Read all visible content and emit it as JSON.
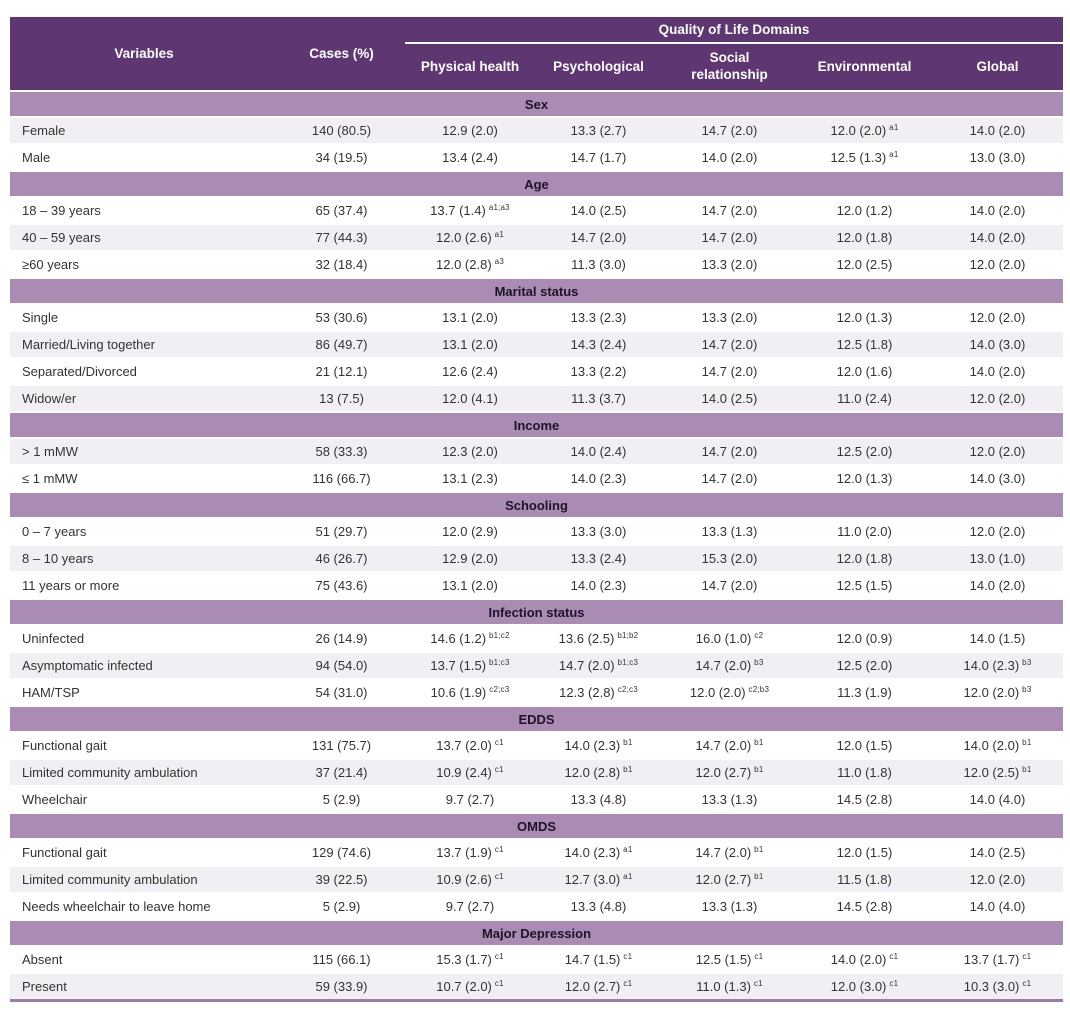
{
  "table": {
    "header": {
      "group_title": "Quality of Life Domains",
      "variables_label": "Variables",
      "cases_label": "Cases (%)",
      "domains": [
        "Physical health",
        "Psychological",
        "Social relationship",
        "Environmental",
        "Global"
      ]
    },
    "colors": {
      "header_bg": "#5e3671",
      "header_text": "#ffffff",
      "section_band_bg": "#aa8bb4",
      "section_band_text": "#1d1526",
      "row_stripe_bg": "#f1eff3",
      "row_white_bg": "#ffffff",
      "bottom_rule": "#9d7cab",
      "body_text": "#333333"
    },
    "sections": [
      {
        "title": "Sex",
        "rows": [
          {
            "label": "Female",
            "cases": "140 (80.5)",
            "cells": [
              {
                "v": "12.9 (2.0)"
              },
              {
                "v": "13.3 (2.7)"
              },
              {
                "v": "14.7 (2.0)"
              },
              {
                "v": "12.0 (2.0)",
                "s": "a1"
              },
              {
                "v": "14.0 (2.0)"
              }
            ]
          },
          {
            "label": "Male",
            "cases": "34 (19.5)",
            "cells": [
              {
                "v": "13.4 (2.4)"
              },
              {
                "v": "14.7 (1.7)"
              },
              {
                "v": "14.0 (2.0)"
              },
              {
                "v": "12.5 (1.3)",
                "s": "a1"
              },
              {
                "v": "13.0 (3.0)"
              }
            ]
          }
        ]
      },
      {
        "title": "Age",
        "rows": [
          {
            "label": "18 – 39 years",
            "cases": "65 (37.4)",
            "cells": [
              {
                "v": "13.7 (1.4)",
                "s": "a1;a3"
              },
              {
                "v": "14.0 (2.5)"
              },
              {
                "v": "14.7 (2.0)"
              },
              {
                "v": "12.0 (1.2)"
              },
              {
                "v": "14.0 (2.0)"
              }
            ]
          },
          {
            "label": "40 – 59 years",
            "cases": "77 (44.3)",
            "cells": [
              {
                "v": "12.0 (2.6)",
                "s": "a1"
              },
              {
                "v": "14.7 (2.0)"
              },
              {
                "v": "14.7 (2.0)"
              },
              {
                "v": "12.0 (1.8)"
              },
              {
                "v": "14.0 (2.0)"
              }
            ]
          },
          {
            "label": "≥60 years",
            "cases": "32 (18.4)",
            "cells": [
              {
                "v": "12.0 (2.8)",
                "s": "a3"
              },
              {
                "v": "11.3 (3.0)"
              },
              {
                "v": "13.3 (2.0)"
              },
              {
                "v": "12.0 (2.5)"
              },
              {
                "v": "12.0 (2.0)"
              }
            ]
          }
        ]
      },
      {
        "title": "Marital status",
        "rows": [
          {
            "label": "Single",
            "cases": "53 (30.6)",
            "cells": [
              {
                "v": "13.1 (2.0)"
              },
              {
                "v": "13.3 (2.3)"
              },
              {
                "v": "13.3 (2.0)"
              },
              {
                "v": "12.0 (1.3)"
              },
              {
                "v": "12.0 (2.0)"
              }
            ]
          },
          {
            "label": "Married/Living together",
            "cases": "86 (49.7)",
            "cells": [
              {
                "v": "13.1 (2.0)"
              },
              {
                "v": "14.3 (2.4)"
              },
              {
                "v": "14.7 (2.0)"
              },
              {
                "v": "12.5 (1.8)"
              },
              {
                "v": "14.0 (3.0)"
              }
            ]
          },
          {
            "label": "Separated/Divorced",
            "cases": "21 (12.1)",
            "cells": [
              {
                "v": "12.6 (2.4)"
              },
              {
                "v": "13.3 (2.2)"
              },
              {
                "v": "14.7 (2.0)"
              },
              {
                "v": "12.0 (1.6)"
              },
              {
                "v": "14.0 (2.0)"
              }
            ]
          },
          {
            "label": "Widow/er",
            "cases": "13 (7.5)",
            "cells": [
              {
                "v": "12.0 (4.1)"
              },
              {
                "v": "11.3 (3.7)"
              },
              {
                "v": "14.0 (2.5)"
              },
              {
                "v": "11.0 (2.4)"
              },
              {
                "v": "12.0 (2.0)"
              }
            ]
          }
        ]
      },
      {
        "title": "Income",
        "rows": [
          {
            "label": "> 1 mMW",
            "cases": "58 (33.3)",
            "cells": [
              {
                "v": "12.3 (2.0)"
              },
              {
                "v": "14.0 (2.4)"
              },
              {
                "v": "14.7 (2.0)"
              },
              {
                "v": "12.5 (2.0)"
              },
              {
                "v": "12.0 (2.0)"
              }
            ]
          },
          {
            "label": "≤ 1 mMW",
            "cases": "116 (66.7)",
            "cells": [
              {
                "v": "13.1 (2.3)"
              },
              {
                "v": "14.0 (2.3)"
              },
              {
                "v": "14.7 (2.0)"
              },
              {
                "v": "12.0 (1.3)"
              },
              {
                "v": "14.0 (3.0)"
              }
            ]
          }
        ]
      },
      {
        "title": "Schooling",
        "rows": [
          {
            "label": "0 – 7 years",
            "cases": "51 (29.7)",
            "cells": [
              {
                "v": "12.0 (2.9)"
              },
              {
                "v": "13.3 (3.0)"
              },
              {
                "v": "13.3 (1.3)"
              },
              {
                "v": "11.0 (2.0)"
              },
              {
                "v": "12.0 (2.0)"
              }
            ]
          },
          {
            "label": "8 – 10 years",
            "cases": "46 (26.7)",
            "cells": [
              {
                "v": "12.9 (2.0)"
              },
              {
                "v": "13.3 (2.4)"
              },
              {
                "v": "15.3 (2.0)"
              },
              {
                "v": "12.0 (1.8)"
              },
              {
                "v": "13.0 (1.0)"
              }
            ]
          },
          {
            "label": "11 years or more",
            "cases": "75 (43.6)",
            "cells": [
              {
                "v": "13.1 (2.0)"
              },
              {
                "v": "14.0 (2.3)"
              },
              {
                "v": "14.7 (2.0)"
              },
              {
                "v": "12.5 (1.5)"
              },
              {
                "v": "14.0 (2.0)"
              }
            ]
          }
        ]
      },
      {
        "title": "Infection status",
        "rows": [
          {
            "label": "Uninfected",
            "cases": "26 (14.9)",
            "cells": [
              {
                "v": "14.6 (1.2)",
                "s": "b1;c2"
              },
              {
                "v": "13.6 (2.5)",
                "s": "b1;b2"
              },
              {
                "v": "16.0 (1.0)",
                "s": "c2"
              },
              {
                "v": "12.0 (0.9)"
              },
              {
                "v": "14.0 (1.5)"
              }
            ]
          },
          {
            "label": "Asymptomatic infected",
            "cases": "94 (54.0)",
            "cells": [
              {
                "v": "13.7 (1.5)",
                "s": "b1;c3"
              },
              {
                "v": "14.7 (2.0)",
                "s": "b1;c3"
              },
              {
                "v": "14.7 (2.0)",
                "s": "b3"
              },
              {
                "v": "12.5 (2.0)"
              },
              {
                "v": "14.0 (2.3)",
                "s": "b3"
              }
            ]
          },
          {
            "label": "HAM/TSP",
            "cases": "54 (31.0)",
            "cells": [
              {
                "v": "10.6 (1.9)",
                "s": "c2;c3"
              },
              {
                "v": "12.3 (2.8)",
                "s": "c2;c3"
              },
              {
                "v": "12.0 (2.0)",
                "s": "c2;b3"
              },
              {
                "v": "11.3 (1.9)"
              },
              {
                "v": "12.0 (2.0)",
                "s": "b3"
              }
            ]
          }
        ]
      },
      {
        "title": "EDDS",
        "rows": [
          {
            "label": "Functional gait",
            "cases": "131 (75.7)",
            "cells": [
              {
                "v": "13.7 (2.0)",
                "s": "c1"
              },
              {
                "v": "14.0 (2.3)",
                "s": "b1"
              },
              {
                "v": "14.7 (2.0)",
                "s": "b1"
              },
              {
                "v": "12.0 (1.5)"
              },
              {
                "v": "14.0 (2.0)",
                "s": "b1"
              }
            ]
          },
          {
            "label": "Limited community ambulation",
            "cases": "37 (21.4)",
            "cells": [
              {
                "v": "10.9 (2.4)",
                "s": "c1"
              },
              {
                "v": "12.0 (2.8)",
                "s": "b1"
              },
              {
                "v": "12.0 (2.7)",
                "s": "b1"
              },
              {
                "v": "11.0 (1.8)"
              },
              {
                "v": "12.0 (2.5)",
                "s": "b1"
              }
            ]
          },
          {
            "label": "Wheelchair",
            "cases": "5 (2.9)",
            "cells": [
              {
                "v": "9.7 (2.7)"
              },
              {
                "v": "13.3 (4.8)"
              },
              {
                "v": "13.3 (1.3)"
              },
              {
                "v": "14.5 (2.8)"
              },
              {
                "v": "14.0 (4.0)"
              }
            ]
          }
        ]
      },
      {
        "title": "OMDS",
        "rows": [
          {
            "label": "Functional gait",
            "cases": "129 (74.6)",
            "cells": [
              {
                "v": "13.7 (1.9)",
                "s": "c1"
              },
              {
                "v": "14.0 (2.3)",
                "s": "a1"
              },
              {
                "v": "14.7 (2.0)",
                "s": "b1"
              },
              {
                "v": "12.0 (1.5)"
              },
              {
                "v": "14.0 (2.5)"
              }
            ]
          },
          {
            "label": "Limited community ambulation",
            "cases": "39 (22.5)",
            "cells": [
              {
                "v": "10.9 (2.6)",
                "s": "c1"
              },
              {
                "v": "12.7 (3.0)",
                "s": "a1"
              },
              {
                "v": "12.0 (2.7)",
                "s": "b1"
              },
              {
                "v": "11.5 (1.8)"
              },
              {
                "v": "12.0 (2.0)"
              }
            ]
          },
          {
            "label": "Needs wheelchair to leave home",
            "cases": "5 (2.9)",
            "cells": [
              {
                "v": "9.7 (2.7)"
              },
              {
                "v": "13.3 (4.8)"
              },
              {
                "v": "13.3 (1.3)"
              },
              {
                "v": "14.5 (2.8)"
              },
              {
                "v": "14.0 (4.0)"
              }
            ]
          }
        ]
      },
      {
        "title": "Major Depression",
        "rows": [
          {
            "label": "Absent",
            "cases": "115 (66.1)",
            "cells": [
              {
                "v": "15.3 (1.7)",
                "s": "c1"
              },
              {
                "v": "14.7 (1.5)",
                "s": "c1"
              },
              {
                "v": "12.5 (1.5)",
                "s": "c1"
              },
              {
                "v": "14.0 (2.0)",
                "s": "c1"
              },
              {
                "v": "13.7 (1.7)",
                "s": "c1"
              }
            ]
          },
          {
            "label": "Present",
            "cases": "59 (33.9)",
            "cells": [
              {
                "v": "10.7 (2.0)",
                "s": "c1"
              },
              {
                "v": "12.0 (2.7)",
                "s": "c1"
              },
              {
                "v": "11.0 (1.3)",
                "s": "c1"
              },
              {
                "v": "12.0 (3.0)",
                "s": "c1"
              },
              {
                "v": "10.3 (3.0)",
                "s": "c1"
              }
            ]
          }
        ]
      }
    ]
  }
}
